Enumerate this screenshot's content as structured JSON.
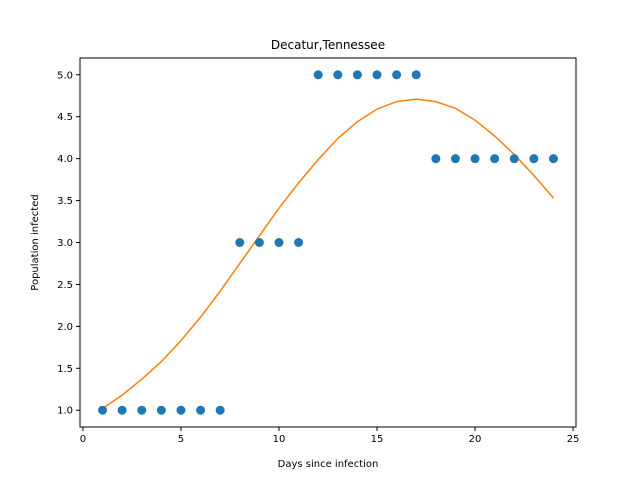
{
  "chart_data": {
    "type": "scatter",
    "title": "Decatur,Tennessee",
    "xlabel": "Days since infection",
    "ylabel": "Population infected",
    "xlim": [
      -0.15,
      25.15
    ],
    "ylim": [
      0.8,
      5.2
    ],
    "xticks": [
      0,
      5,
      10,
      15,
      20,
      25
    ],
    "xtick_labels": [
      "0",
      "5",
      "10",
      "15",
      "20",
      "25"
    ],
    "yticks": [
      1.0,
      1.5,
      2.0,
      2.5,
      3.0,
      3.5,
      4.0,
      4.5,
      5.0
    ],
    "ytick_labels": [
      "1.0",
      "1.5",
      "2.0",
      "2.5",
      "3.0",
      "3.5",
      "4.0",
      "4.5",
      "5.0"
    ],
    "grid": false,
    "series": [
      {
        "kind": "scatter",
        "color": "#1f77b4",
        "x": [
          1,
          2,
          3,
          4,
          5,
          6,
          7,
          8,
          9,
          10,
          11,
          12,
          13,
          14,
          15,
          16,
          17,
          18,
          19,
          20,
          21,
          22,
          23,
          24
        ],
        "y": [
          1,
          1,
          1,
          1,
          1,
          1,
          1,
          3,
          3,
          3,
          3,
          5,
          5,
          5,
          5,
          5,
          5,
          4,
          4,
          4,
          4,
          4,
          4,
          4
        ]
      },
      {
        "kind": "line",
        "color": "#ff7f0e",
        "x": [
          1,
          2,
          3,
          4,
          5,
          6,
          7,
          8,
          9,
          10,
          11,
          12,
          13,
          14,
          15,
          16,
          17,
          18,
          19,
          20,
          21,
          22,
          23,
          24
        ],
        "y": [
          1.02,
          1.18,
          1.37,
          1.58,
          1.83,
          2.11,
          2.42,
          2.75,
          3.08,
          3.41,
          3.71,
          3.99,
          4.24,
          4.44,
          4.59,
          4.68,
          4.71,
          4.68,
          4.6,
          4.46,
          4.27,
          4.05,
          3.8,
          3.53
        ]
      }
    ]
  }
}
